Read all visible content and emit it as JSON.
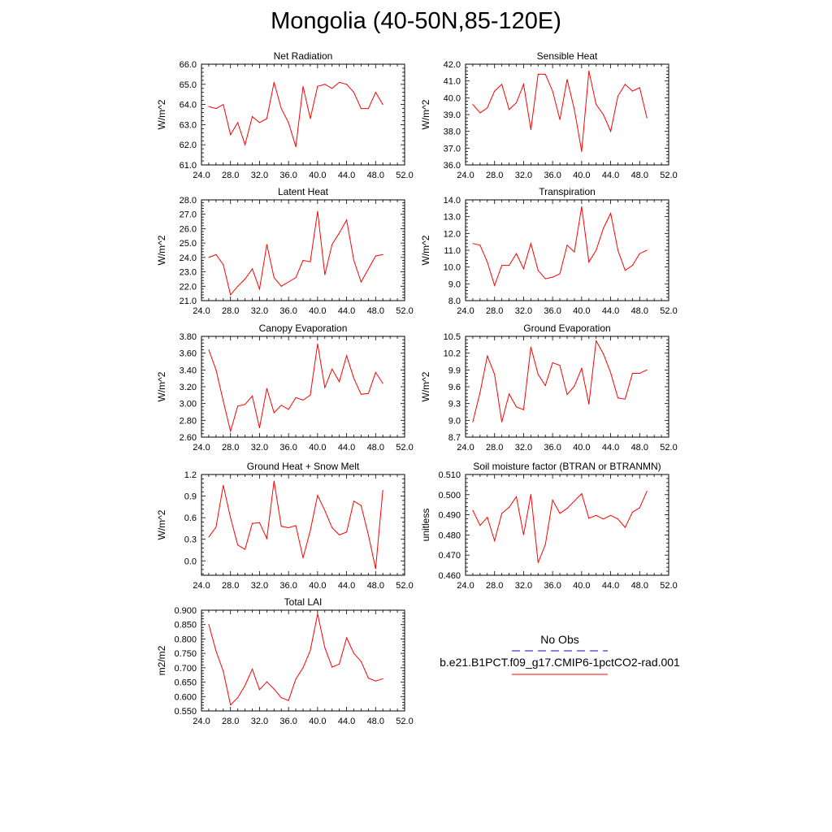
{
  "title": "Mongolia (40-50N,85-120E)",
  "legend": {
    "obs_label": "No Obs",
    "model_label": "b.e21.B1PCT.f09_g17.CMIP6-1pctCO2-rad.001",
    "obs_color": "#3b3bd0",
    "model_color": "#ff0000"
  },
  "x": [
    25,
    26,
    27,
    28,
    29,
    30,
    31,
    32,
    33,
    34,
    35,
    36,
    37,
    38,
    39,
    40,
    41,
    42,
    43,
    44,
    45,
    46,
    47,
    48,
    49
  ],
  "chart_data": [
    {
      "type": "line",
      "title": "Net Radiation",
      "ylabel": "W/m^2",
      "xlim": [
        24,
        52
      ],
      "ylim": [
        61,
        66
      ],
      "xticks": [
        "24.0",
        "28.0",
        "32.0",
        "36.0",
        "40.0",
        "44.0",
        "48.0",
        "52.0"
      ],
      "yticks": [
        "61.0",
        "62.0",
        "63.0",
        "64.0",
        "65.0",
        "66.0"
      ],
      "series": [
        {
          "values": [
            63.9,
            63.8,
            64.0,
            62.5,
            63.1,
            62.0,
            63.4,
            63.1,
            63.3,
            65.1,
            63.8,
            63.1,
            61.9,
            64.9,
            63.3,
            64.9,
            65.0,
            64.8,
            65.1,
            65.0,
            64.6,
            63.8,
            63.8,
            64.6,
            64.0
          ]
        }
      ]
    },
    {
      "type": "line",
      "title": "Sensible Heat",
      "ylabel": "W/m^2",
      "xlim": [
        24,
        52
      ],
      "ylim": [
        36,
        42
      ],
      "xticks": [
        "24.0",
        "28.0",
        "32.0",
        "36.0",
        "40.0",
        "44.0",
        "48.0",
        "52.0"
      ],
      "yticks": [
        "36.0",
        "37.0",
        "38.0",
        "39.0",
        "40.0",
        "41.0",
        "42.0"
      ],
      "series": [
        {
          "values": [
            39.6,
            39.1,
            39.4,
            40.4,
            40.8,
            39.3,
            39.7,
            40.8,
            38.1,
            41.4,
            41.4,
            40.4,
            38.7,
            41.1,
            39.3,
            36.8,
            41.6,
            39.6,
            39.0,
            38.0,
            40.1,
            40.8,
            40.4,
            40.6,
            38.8
          ]
        }
      ]
    },
    {
      "type": "line",
      "title": "Latent Heat",
      "ylabel": "W/m^2",
      "xlim": [
        24,
        52
      ],
      "ylim": [
        21,
        28
      ],
      "xticks": [
        "24.0",
        "28.0",
        "32.0",
        "36.0",
        "40.0",
        "44.0",
        "48.0",
        "52.0"
      ],
      "yticks": [
        "21.0",
        "22.0",
        "23.0",
        "24.0",
        "25.0",
        "26.0",
        "27.0",
        "28.0"
      ],
      "series": [
        {
          "values": [
            24.0,
            24.2,
            23.5,
            21.4,
            22.0,
            22.5,
            23.2,
            21.8,
            24.9,
            22.6,
            22.0,
            22.3,
            22.6,
            23.8,
            23.7,
            27.2,
            22.8,
            24.9,
            25.7,
            26.6,
            23.8,
            22.3,
            23.2,
            24.1,
            24.2
          ]
        }
      ]
    },
    {
      "type": "line",
      "title": "Transpiration",
      "ylabel": "W/m^2",
      "xlim": [
        24,
        52
      ],
      "ylim": [
        8,
        14
      ],
      "xticks": [
        "24.0",
        "28.0",
        "32.0",
        "36.0",
        "40.0",
        "44.0",
        "48.0",
        "52.0"
      ],
      "yticks": [
        "8.0",
        "9.0",
        "10.0",
        "11.0",
        "12.0",
        "13.0",
        "14.0"
      ],
      "series": [
        {
          "values": [
            11.4,
            11.3,
            10.3,
            8.9,
            10.1,
            10.1,
            10.8,
            9.9,
            11.4,
            9.8,
            9.3,
            9.4,
            9.6,
            11.3,
            10.9,
            13.6,
            10.3,
            11.0,
            12.3,
            13.2,
            11.0,
            9.8,
            10.1,
            10.8,
            11.0
          ]
        }
      ]
    },
    {
      "type": "line",
      "title": "Canopy Evaporation",
      "ylabel": "W/m^2",
      "xlim": [
        24,
        52
      ],
      "ylim": [
        2.6,
        3.8
      ],
      "xticks": [
        "24.0",
        "28.0",
        "32.0",
        "36.0",
        "40.0",
        "44.0",
        "48.0",
        "52.0"
      ],
      "yticks": [
        "2.60",
        "2.80",
        "3.00",
        "3.20",
        "3.40",
        "3.60",
        "3.80"
      ],
      "series": [
        {
          "values": [
            3.64,
            3.4,
            3.03,
            2.67,
            2.97,
            2.99,
            3.09,
            2.71,
            3.18,
            2.89,
            2.98,
            2.93,
            3.07,
            3.04,
            3.1,
            3.71,
            3.19,
            3.41,
            3.26,
            3.57,
            3.3,
            3.11,
            3.12,
            3.37,
            3.24
          ]
        }
      ]
    },
    {
      "type": "line",
      "title": "Ground Evaporation",
      "ylabel": "W/m^2",
      "xlim": [
        24,
        52
      ],
      "ylim": [
        8.7,
        10.5
      ],
      "xticks": [
        "24.0",
        "28.0",
        "32.0",
        "36.0",
        "40.0",
        "44.0",
        "48.0",
        "52.0"
      ],
      "yticks": [
        "8.7",
        "9.0",
        "9.3",
        "9.6",
        "9.9",
        "10.2",
        "10.5"
      ],
      "series": [
        {
          "values": [
            8.97,
            9.5,
            10.15,
            9.82,
            8.97,
            9.47,
            9.24,
            9.19,
            10.31,
            9.82,
            9.62,
            10.03,
            9.98,
            9.46,
            9.61,
            9.93,
            9.29,
            10.42,
            10.19,
            9.85,
            9.4,
            9.38,
            9.84,
            9.84,
            9.9
          ]
        }
      ]
    },
    {
      "type": "line",
      "title": "Ground Heat + Snow Melt",
      "ylabel": "W/m^2",
      "xlim": [
        24,
        52
      ],
      "ylim": [
        -0.2,
        1.2
      ],
      "xticks": [
        "24.0",
        "28.0",
        "32.0",
        "36.0",
        "40.0",
        "44.0",
        "48.0",
        "52.0"
      ],
      "yticks": [
        "0.0",
        "0.3",
        "0.6",
        "0.9",
        "1.2"
      ],
      "series": [
        {
          "values": [
            0.33,
            0.47,
            1.05,
            0.6,
            0.22,
            0.16,
            0.52,
            0.53,
            0.31,
            1.11,
            0.48,
            0.46,
            0.49,
            0.04,
            0.42,
            0.91,
            0.7,
            0.46,
            0.36,
            0.4,
            0.83,
            0.77,
            0.36,
            -0.11,
            0.98
          ]
        }
      ]
    },
    {
      "type": "line",
      "title": "Soil moisture factor (BTRAN or BTRANMN)",
      "ylabel": "unitless",
      "xlim": [
        24,
        52
      ],
      "ylim": [
        0.46,
        0.51
      ],
      "xticks": [
        "24.0",
        "28.0",
        "32.0",
        "36.0",
        "40.0",
        "44.0",
        "48.0",
        "52.0"
      ],
      "yticks": [
        "0.460",
        "0.470",
        "0.480",
        "0.490",
        "0.500",
        "0.510"
      ],
      "series": [
        {
          "values": [
            0.4922,
            0.4847,
            0.4888,
            0.4771,
            0.4907,
            0.4937,
            0.499,
            0.4801,
            0.5001,
            0.4663,
            0.4752,
            0.4973,
            0.4907,
            0.4932,
            0.4968,
            0.5005,
            0.4883,
            0.4897,
            0.4879,
            0.4897,
            0.4879,
            0.4837,
            0.4913,
            0.4935,
            0.5017
          ]
        }
      ]
    },
    {
      "type": "line",
      "title": "Total LAI",
      "ylabel": "m2/m2",
      "xlim": [
        24,
        52
      ],
      "ylim": [
        0.55,
        0.9
      ],
      "xticks": [
        "24.0",
        "28.0",
        "32.0",
        "36.0",
        "40.0",
        "44.0",
        "48.0",
        "52.0"
      ],
      "yticks": [
        "0.550",
        "0.600",
        "0.650",
        "0.700",
        "0.750",
        "0.800",
        "0.850",
        "0.900"
      ],
      "series": [
        {
          "values": [
            0.851,
            0.758,
            0.688,
            0.571,
            0.596,
            0.639,
            0.695,
            0.624,
            0.651,
            0.626,
            0.596,
            0.586,
            0.661,
            0.7,
            0.76,
            0.887,
            0.77,
            0.702,
            0.713,
            0.804,
            0.75,
            0.722,
            0.664,
            0.654,
            0.662
          ]
        }
      ]
    }
  ]
}
